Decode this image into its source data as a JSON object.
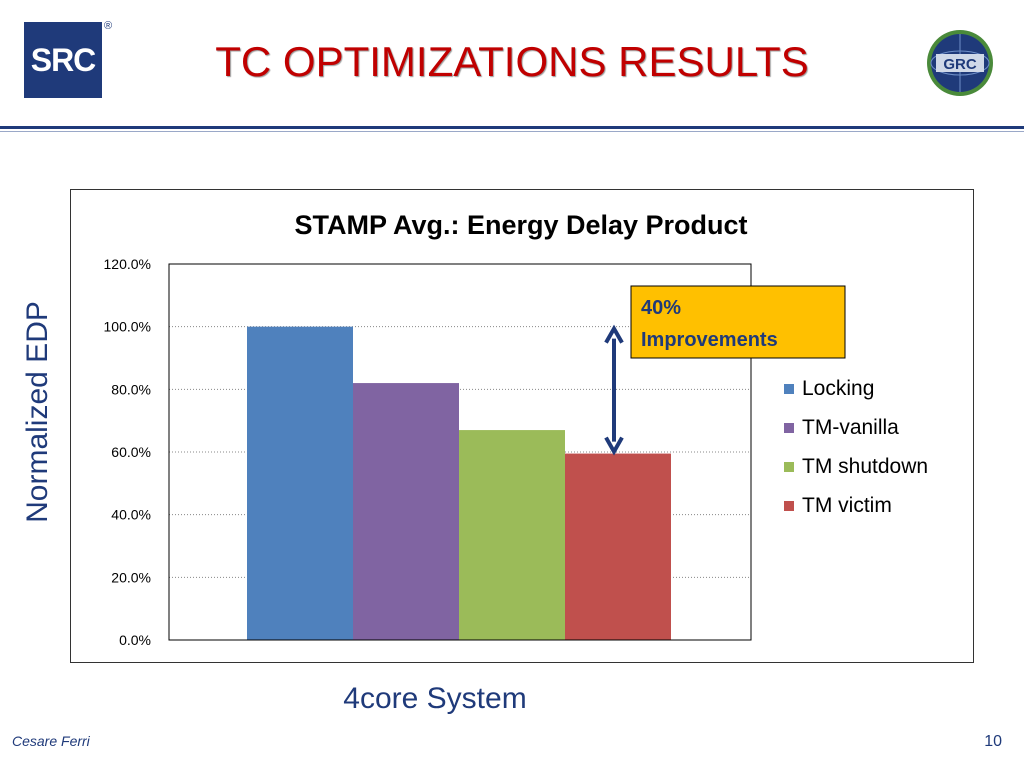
{
  "header": {
    "title": "TC OPTIMIZATIONS RESULTS",
    "left_logo_text": "SRC",
    "left_logo_mark": "®",
    "right_logo_text": "GRC"
  },
  "footer": {
    "author": "Cesare Ferri",
    "page_number": "10"
  },
  "axis_labels": {
    "y": "Normalized  EDP",
    "x": "4core System"
  },
  "annotation": {
    "line1": "40%",
    "line2": "Improvements",
    "box_color": "#ffc000"
  },
  "chart_data": {
    "type": "bar",
    "title": "STAMP Avg.: Energy Delay Product",
    "ylim": [
      0,
      120
    ],
    "yticks": [
      "0.0%",
      "20.0%",
      "40.0%",
      "60.0%",
      "80.0%",
      "100.0%",
      "120.0%"
    ],
    "ytick_values": [
      0,
      20,
      40,
      60,
      80,
      100,
      120
    ],
    "grid": true,
    "legend_position": "right",
    "series": [
      {
        "name": "Locking",
        "values": [
          100
        ],
        "color": "#4f81bd"
      },
      {
        "name": "TM-vanilla",
        "values": [
          82
        ],
        "color": "#8064a2"
      },
      {
        "name": "TM shutdown",
        "values": [
          67
        ],
        "color": "#9bbb59"
      },
      {
        "name": "TM victim",
        "values": [
          59.5
        ],
        "color": "#c0504d"
      }
    ]
  }
}
